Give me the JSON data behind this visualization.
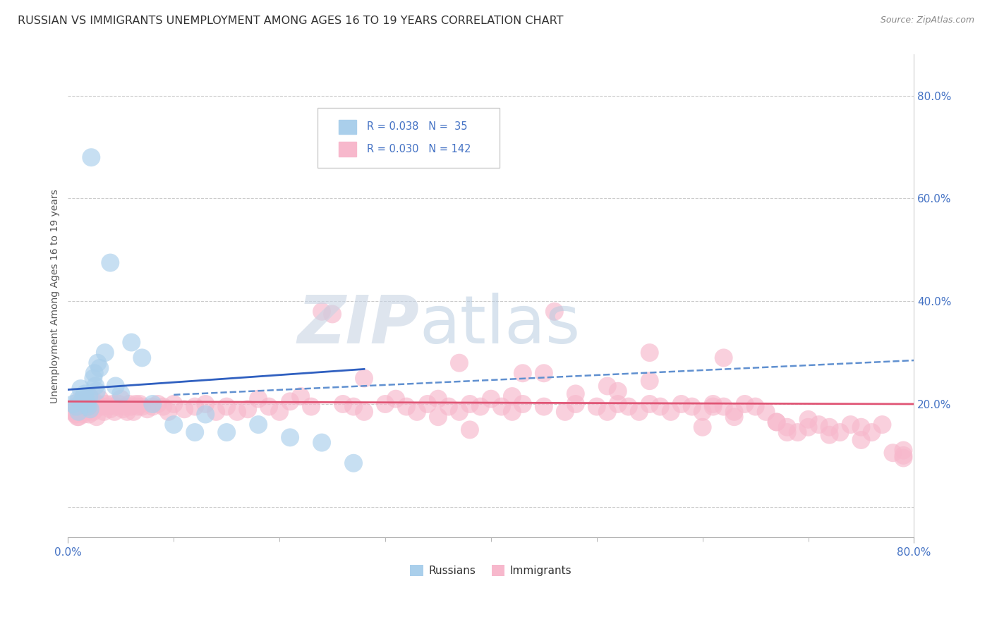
{
  "title": "RUSSIAN VS IMMIGRANTS UNEMPLOYMENT AMONG AGES 16 TO 19 YEARS CORRELATION CHART",
  "source": "Source: ZipAtlas.com",
  "ylabel": "Unemployment Among Ages 16 to 19 years",
  "xmin": 0.0,
  "xmax": 0.8,
  "ymin": -0.06,
  "ymax": 0.88,
  "ytick_vals": [
    0.0,
    0.2,
    0.4,
    0.6,
    0.8
  ],
  "ytick_labels": [
    "",
    "20.0%",
    "40.0%",
    "60.0%",
    "80.0%"
  ],
  "russian_color": "#aacfeb",
  "russian_edge": "#7aafe0",
  "immigrant_color": "#f7b8cc",
  "immigrant_edge": "#f07090",
  "trend_russian_solid_color": "#3060c0",
  "trend_immigrant_dashed_color": "#6090d0",
  "trend_immigrant_flat_color": "#e05575",
  "watermark_zip_color": "#c8d4e4",
  "watermark_atlas_color": "#b8cce0",
  "legend_text_color": "#4472c4",
  "axis_tick_color": "#4472c4",
  "xlabel_color": "#4472c4",
  "grid_color": "#cccccc",
  "russian_x": [
    0.005,
    0.008,
    0.01,
    0.01,
    0.012,
    0.013,
    0.015,
    0.016,
    0.017,
    0.018,
    0.019,
    0.02,
    0.021,
    0.022,
    0.024,
    0.025,
    0.026,
    0.027,
    0.028,
    0.03,
    0.035,
    0.04,
    0.045,
    0.05,
    0.06,
    0.07,
    0.08,
    0.1,
    0.12,
    0.13,
    0.15,
    0.18,
    0.21,
    0.24,
    0.27
  ],
  "russian_y": [
    0.2,
    0.195,
    0.21,
    0.185,
    0.23,
    0.205,
    0.215,
    0.22,
    0.21,
    0.2,
    0.195,
    0.215,
    0.19,
    0.68,
    0.25,
    0.26,
    0.235,
    0.225,
    0.28,
    0.27,
    0.3,
    0.475,
    0.235,
    0.22,
    0.32,
    0.29,
    0.2,
    0.16,
    0.145,
    0.18,
    0.145,
    0.16,
    0.135,
    0.125,
    0.085
  ],
  "imm_x_left": [
    0.005,
    0.007,
    0.008,
    0.009,
    0.01,
    0.01,
    0.011,
    0.012,
    0.013,
    0.014,
    0.015,
    0.015,
    0.016,
    0.017,
    0.018,
    0.019,
    0.02,
    0.02,
    0.021,
    0.022,
    0.023,
    0.024,
    0.025,
    0.026,
    0.027,
    0.028,
    0.03,
    0.032,
    0.034,
    0.036,
    0.038,
    0.04,
    0.042,
    0.044,
    0.046,
    0.048,
    0.05,
    0.052,
    0.054,
    0.056,
    0.058,
    0.06,
    0.062,
    0.064,
    0.066,
    0.068,
    0.07,
    0.075,
    0.08,
    0.085,
    0.09,
    0.095,
    0.1,
    0.11,
    0.12,
    0.13,
    0.14,
    0.15,
    0.16,
    0.17
  ],
  "imm_y_left": [
    0.185,
    0.18,
    0.195,
    0.175,
    0.205,
    0.175,
    0.19,
    0.2,
    0.185,
    0.195,
    0.215,
    0.18,
    0.205,
    0.195,
    0.185,
    0.2,
    0.215,
    0.18,
    0.2,
    0.21,
    0.195,
    0.185,
    0.205,
    0.195,
    0.175,
    0.2,
    0.21,
    0.195,
    0.185,
    0.2,
    0.195,
    0.19,
    0.2,
    0.185,
    0.195,
    0.2,
    0.21,
    0.19,
    0.195,
    0.185,
    0.2,
    0.195,
    0.185,
    0.2,
    0.195,
    0.2,
    0.195,
    0.19,
    0.195,
    0.2,
    0.195,
    0.185,
    0.2,
    0.19,
    0.195,
    0.2,
    0.185,
    0.195,
    0.185,
    0.19
  ],
  "imm_x_right": [
    0.18,
    0.19,
    0.2,
    0.21,
    0.22,
    0.23,
    0.24,
    0.25,
    0.26,
    0.27,
    0.28,
    0.3,
    0.31,
    0.32,
    0.33,
    0.34,
    0.35,
    0.36,
    0.37,
    0.38,
    0.39,
    0.4,
    0.41,
    0.42,
    0.43,
    0.45,
    0.46,
    0.47,
    0.48,
    0.5,
    0.51,
    0.52,
    0.53,
    0.54,
    0.55,
    0.56,
    0.57,
    0.58,
    0.59,
    0.6,
    0.61,
    0.62,
    0.63,
    0.64,
    0.65,
    0.66,
    0.67,
    0.68,
    0.69,
    0.7,
    0.71,
    0.72,
    0.73,
    0.74,
    0.75,
    0.76,
    0.77,
    0.78,
    0.79,
    0.79,
    0.79,
    0.45,
    0.38,
    0.55,
    0.6,
    0.63,
    0.68,
    0.43,
    0.35,
    0.55,
    0.67,
    0.28,
    0.42,
    0.51,
    0.61,
    0.72,
    0.52,
    0.37,
    0.48,
    0.7,
    0.62,
    0.75
  ],
  "imm_y_right": [
    0.21,
    0.195,
    0.185,
    0.205,
    0.215,
    0.195,
    0.38,
    0.375,
    0.2,
    0.195,
    0.185,
    0.2,
    0.21,
    0.195,
    0.185,
    0.2,
    0.21,
    0.195,
    0.185,
    0.2,
    0.195,
    0.21,
    0.195,
    0.185,
    0.2,
    0.195,
    0.38,
    0.185,
    0.2,
    0.195,
    0.185,
    0.2,
    0.195,
    0.185,
    0.2,
    0.195,
    0.185,
    0.2,
    0.195,
    0.185,
    0.2,
    0.195,
    0.185,
    0.2,
    0.195,
    0.185,
    0.165,
    0.155,
    0.145,
    0.17,
    0.16,
    0.155,
    0.145,
    0.16,
    0.155,
    0.145,
    0.16,
    0.105,
    0.095,
    0.11,
    0.1,
    0.26,
    0.15,
    0.3,
    0.155,
    0.175,
    0.145,
    0.26,
    0.175,
    0.245,
    0.165,
    0.25,
    0.215,
    0.235,
    0.195,
    0.14,
    0.225,
    0.28,
    0.22,
    0.155,
    0.29,
    0.13
  ]
}
